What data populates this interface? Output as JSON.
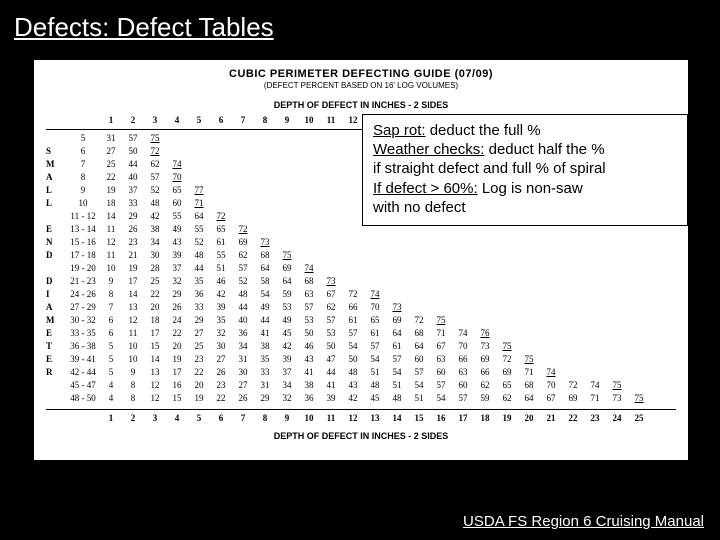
{
  "slide": {
    "title_prefix": "Defects:",
    "title_rest": " Defect Tables",
    "footer": "USDA FS Region 6 Cruising Manual"
  },
  "guide": {
    "title": "CUBIC PERIMETER DEFECTING GUIDE (07/09)",
    "subtitle": "(DEFECT PERCENT BASED ON 16' LOG VOLUMES)",
    "header_label": "DEPTH OF DEFECT IN INCHES - 2 SIDES",
    "footer_label": "DEPTH OF DEFECT IN INCHES - 2 SIDES",
    "col_headers": [
      "1",
      "2",
      "3",
      "4",
      "5",
      "6",
      "7",
      "8",
      "9",
      "10",
      "11",
      "12",
      "13",
      "14",
      "15",
      "16",
      "17",
      "18",
      "19",
      "20",
      "21",
      "22",
      "23",
      "24",
      "25"
    ],
    "left_labels": [
      "",
      "S",
      "M",
      "A",
      "L",
      "L",
      "",
      "E",
      "N",
      "D",
      "",
      "D",
      "I",
      "A",
      "M",
      "E",
      "T",
      "E",
      "R",
      ""
    ],
    "rows": [
      {
        "n": "5",
        "v": [
          "31",
          "57",
          "75"
        ],
        "s": 2
      },
      {
        "n": "6",
        "v": [
          "27",
          "50",
          "72"
        ],
        "s": 2
      },
      {
        "n": "7",
        "v": [
          "25",
          "44",
          "62",
          "74"
        ],
        "s": 3
      },
      {
        "n": "8",
        "v": [
          "22",
          "40",
          "57",
          "70"
        ],
        "s": 3
      },
      {
        "n": "9",
        "v": [
          "19",
          "37",
          "52",
          "65",
          "77"
        ],
        "s": 4
      },
      {
        "n": "10",
        "v": [
          "18",
          "33",
          "48",
          "60",
          "71"
        ],
        "s": 4
      },
      {
        "n": "11 - 12",
        "v": [
          "14",
          "29",
          "42",
          "55",
          "64",
          "72"
        ],
        "s": 5
      },
      {
        "n": "13 - 14",
        "v": [
          "11",
          "26",
          "38",
          "49",
          "55",
          "65",
          "72"
        ],
        "s": 6
      },
      {
        "n": "15 - 16",
        "v": [
          "12",
          "23",
          "34",
          "43",
          "52",
          "61",
          "69",
          "73"
        ],
        "s": 7
      },
      {
        "n": "17 - 18",
        "v": [
          "11",
          "21",
          "30",
          "39",
          "48",
          "55",
          "62",
          "68",
          "75"
        ],
        "s": 8
      },
      {
        "n": "19 - 20",
        "v": [
          "10",
          "19",
          "28",
          "37",
          "44",
          "51",
          "57",
          "64",
          "69",
          "74"
        ],
        "s": 9
      },
      {
        "n": "21 - 23",
        "v": [
          "9",
          "17",
          "25",
          "32",
          "35",
          "46",
          "52",
          "58",
          "64",
          "68",
          "73"
        ],
        "s": 10
      },
      {
        "n": "24 - 26",
        "v": [
          "8",
          "14",
          "22",
          "29",
          "36",
          "42",
          "48",
          "54",
          "59",
          "63",
          "67",
          "72",
          "74"
        ],
        "s": 12
      },
      {
        "n": "27 - 29",
        "v": [
          "7",
          "13",
          "20",
          "26",
          "33",
          "39",
          "44",
          "49",
          "53",
          "57",
          "62",
          "66",
          "70",
          "73"
        ],
        "s": 13
      },
      {
        "n": "30 - 32",
        "v": [
          "6",
          "12",
          "18",
          "24",
          "29",
          "35",
          "40",
          "44",
          "49",
          "53",
          "57",
          "61",
          "65",
          "69",
          "72",
          "75"
        ],
        "s": 15
      },
      {
        "n": "33 - 35",
        "v": [
          "6",
          "11",
          "17",
          "22",
          "27",
          "32",
          "36",
          "41",
          "45",
          "50",
          "53",
          "57",
          "61",
          "64",
          "68",
          "71",
          "74",
          "76"
        ],
        "s": 17
      },
      {
        "n": "36 - 38",
        "v": [
          "5",
          "10",
          "15",
          "20",
          "25",
          "30",
          "34",
          "38",
          "42",
          "46",
          "50",
          "54",
          "57",
          "61",
          "64",
          "67",
          "70",
          "73",
          "75"
        ],
        "s": 18
      },
      {
        "n": "39 - 41",
        "v": [
          "5",
          "10",
          "14",
          "19",
          "23",
          "27",
          "31",
          "35",
          "39",
          "43",
          "47",
          "50",
          "54",
          "57",
          "60",
          "63",
          "66",
          "69",
          "72",
          "75"
        ],
        "s": 19
      },
      {
        "n": "42 - 44",
        "v": [
          "5",
          "9",
          "13",
          "17",
          "22",
          "26",
          "30",
          "33",
          "37",
          "41",
          "44",
          "48",
          "51",
          "54",
          "57",
          "60",
          "63",
          "66",
          "69",
          "71",
          "74"
        ],
        "s": 20
      },
      {
        "n": "45 - 47",
        "v": [
          "4",
          "8",
          "12",
          "16",
          "20",
          "23",
          "27",
          "31",
          "34",
          "38",
          "41",
          "43",
          "48",
          "51",
          "54",
          "57",
          "60",
          "62",
          "65",
          "68",
          "70",
          "72",
          "74",
          "75"
        ],
        "s": 23
      },
      {
        "n": "48 - 50",
        "v": [
          "4",
          "8",
          "12",
          "15",
          "19",
          "22",
          "26",
          "29",
          "32",
          "36",
          "39",
          "42",
          "45",
          "48",
          "51",
          "54",
          "57",
          "59",
          "62",
          "64",
          "67",
          "69",
          "71",
          "73",
          "75"
        ],
        "s": 24
      }
    ]
  },
  "annotation": {
    "l1a": "Sap rot:",
    "l1b": " deduct the full %",
    "l2a": "Weather checks:",
    "l2b": " deduct half the %",
    "l3": "if straight defect and full % of spiral",
    "l4a": "If defect > 60%:",
    "l4b": " Log is non-saw",
    "l5": "with no defect"
  }
}
